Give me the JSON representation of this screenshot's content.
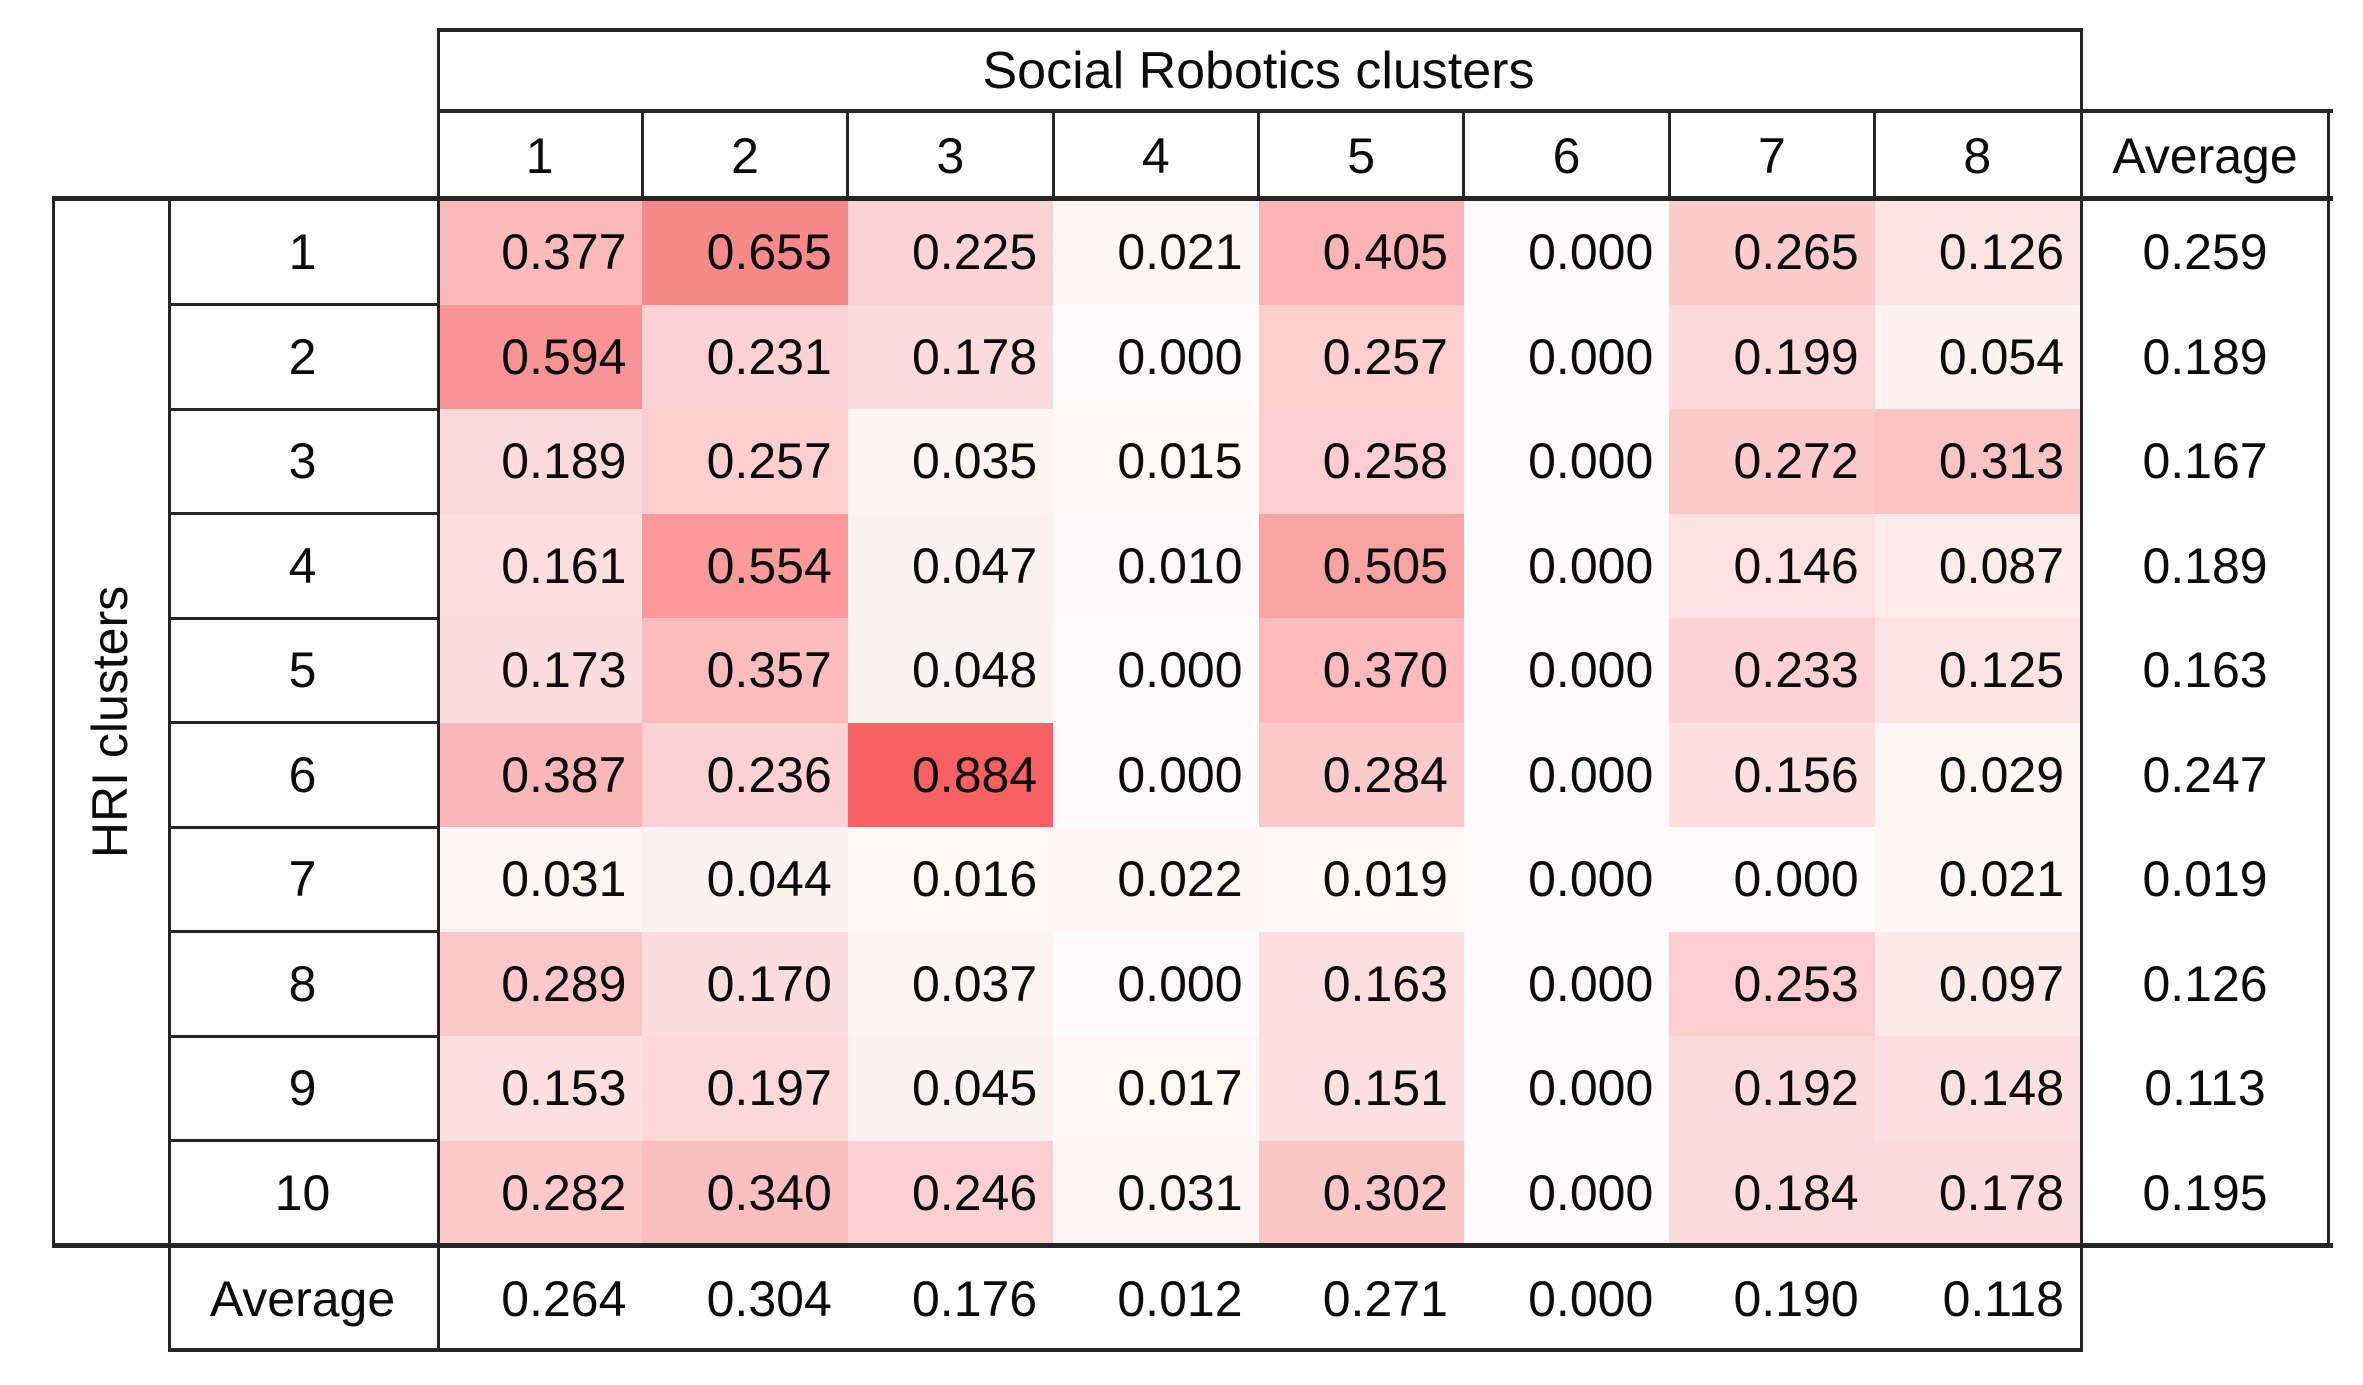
{
  "chart_data": {
    "type": "heatmap",
    "title": "Social Robotics clusters",
    "col_header_label": "Social Robotics clusters",
    "row_header_label": "HRI clusters",
    "average_label": "Average",
    "columns": [
      "1",
      "2",
      "3",
      "4",
      "5",
      "6",
      "7",
      "8"
    ],
    "rows": [
      "1",
      "2",
      "3",
      "4",
      "5",
      "6",
      "7",
      "8",
      "9",
      "10"
    ],
    "values": [
      [
        0.377,
        0.655,
        0.225,
        0.021,
        0.405,
        0.0,
        0.265,
        0.126
      ],
      [
        0.594,
        0.231,
        0.178,
        0.0,
        0.257,
        0.0,
        0.199,
        0.054
      ],
      [
        0.189,
        0.257,
        0.035,
        0.015,
        0.258,
        0.0,
        0.272,
        0.313
      ],
      [
        0.161,
        0.554,
        0.047,
        0.01,
        0.505,
        0.0,
        0.146,
        0.087
      ],
      [
        0.173,
        0.357,
        0.048,
        0.0,
        0.37,
        0.0,
        0.233,
        0.125
      ],
      [
        0.387,
        0.236,
        0.884,
        0.0,
        0.284,
        0.0,
        0.156,
        0.029
      ],
      [
        0.031,
        0.044,
        0.016,
        0.022,
        0.019,
        0.0,
        0.0,
        0.021
      ],
      [
        0.289,
        0.17,
        0.037,
        0.0,
        0.163,
        0.0,
        0.253,
        0.097
      ],
      [
        0.153,
        0.197,
        0.045,
        0.017,
        0.151,
        0.0,
        0.192,
        0.148
      ],
      [
        0.282,
        0.34,
        0.246,
        0.031,
        0.302,
        0.0,
        0.184,
        0.178
      ]
    ],
    "row_averages": [
      0.259,
      0.189,
      0.167,
      0.189,
      0.163,
      0.247,
      0.019,
      0.126,
      0.113,
      0.195
    ],
    "col_averages": [
      0.264,
      0.304,
      0.176,
      0.012,
      0.271,
      0.0,
      0.19,
      0.118
    ],
    "value_decimals": 3,
    "color_scale": {
      "min": 0,
      "max": 0.884,
      "min_color": "#FDFAFB",
      "max_color": "#F86161"
    },
    "border_color": "#262626",
    "legend_position": "none",
    "grid": "section-borders-only"
  }
}
